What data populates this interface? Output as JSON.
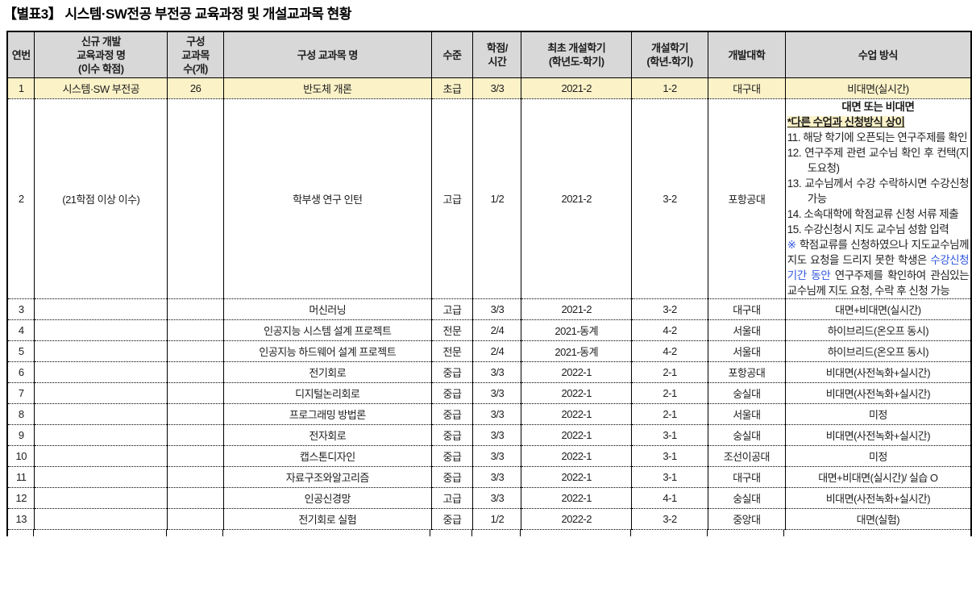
{
  "title": "【별표3】 시스템·SW전공 부전공 교육과정 및 개설교과목 현황",
  "colors": {
    "header_bg": "#d8d8d8",
    "highlight_bg": "#fcf2c8",
    "accent_blue": "#2f55e0",
    "border": "#000000"
  },
  "table": {
    "headers": [
      "연번",
      "신규 개발\n교육과정 명\n(이수 학점)",
      "구성\n교과목\n수(개)",
      "구성 교과목 명",
      "수준",
      "학점/\n시간",
      "최초 개설학기\n(학년도-학기)",
      "개설학기\n(학년-학기)",
      "개발대학",
      "수업 방식"
    ],
    "rows": [
      {
        "no": "1",
        "curriculum": "시스템·SW 부전공",
        "count": "26",
        "subject": "반도체 개론",
        "level": "초급",
        "credit": "3/3",
        "first_semester": "2021-2",
        "semester": "1-2",
        "university": "대구대",
        "method": "비대면(실시간)",
        "highlight": true
      },
      {
        "no": "2",
        "curriculum": "(21학점 이상 이수)",
        "count": "",
        "subject": "학부생 연구 인턴",
        "level": "고급",
        "credit": "1/2",
        "first_semester": "2021-2",
        "semester": "3-2",
        "university": "포항공대",
        "method_special": true,
        "curriculum_left": true
      },
      {
        "no": "3",
        "curriculum": "",
        "count": "",
        "subject": "머신러닝",
        "level": "고급",
        "credit": "3/3",
        "first_semester": "2021-2",
        "semester": "3-2",
        "university": "대구대",
        "method": "대면+비대면(실시간)"
      },
      {
        "no": "4",
        "curriculum": "",
        "count": "",
        "subject": "인공지능 시스템 설계 프로젝트",
        "level": "전문",
        "credit": "2/4",
        "first_semester": "2021-동계",
        "semester": "4-2",
        "university": "서울대",
        "method": "하이브리드(온오프 동시)"
      },
      {
        "no": "5",
        "curriculum": "",
        "count": "",
        "subject": "인공지능 하드웨어 설계 프로젝트",
        "level": "전문",
        "credit": "2/4",
        "first_semester": "2021-동계",
        "semester": "4-2",
        "university": "서울대",
        "method": "하이브리드(온오프 동시)"
      },
      {
        "no": "6",
        "curriculum": "",
        "count": "",
        "subject": "전기회로",
        "level": "중급",
        "credit": "3/3",
        "first_semester": "2022-1",
        "semester": "2-1",
        "university": "포항공대",
        "method": "비대면(사전녹화+실시간)"
      },
      {
        "no": "7",
        "curriculum": "",
        "count": "",
        "subject": "디지털논리회로",
        "level": "중급",
        "credit": "3/3",
        "first_semester": "2022-1",
        "semester": "2-1",
        "university": "숭실대",
        "method": "비대면(사전녹화+실시간)"
      },
      {
        "no": "8",
        "curriculum": "",
        "count": "",
        "subject": "프로그래밍 방법론",
        "level": "중급",
        "credit": "3/3",
        "first_semester": "2022-1",
        "semester": "2-1",
        "university": "서울대",
        "method": "미정"
      },
      {
        "no": "9",
        "curriculum": "",
        "count": "",
        "subject": "전자회로",
        "level": "중급",
        "credit": "3/3",
        "first_semester": "2022-1",
        "semester": "3-1",
        "university": "숭실대",
        "method": "비대면(사전녹화+실시간)"
      },
      {
        "no": "10",
        "curriculum": "",
        "count": "",
        "subject": "캡스톤디자인",
        "level": "중급",
        "credit": "3/3",
        "first_semester": "2022-1",
        "semester": "3-1",
        "university": "조선이공대",
        "method": "미정"
      },
      {
        "no": "11",
        "curriculum": "",
        "count": "",
        "subject": "자료구조와알고리즘",
        "level": "중급",
        "credit": "3/3",
        "first_semester": "2022-1",
        "semester": "3-1",
        "university": "대구대",
        "method": "대면+비대면(실시간)/ 실습 O"
      },
      {
        "no": "12",
        "curriculum": "",
        "count": "",
        "subject": "인공신경망",
        "level": "고급",
        "credit": "3/3",
        "first_semester": "2022-1",
        "semester": "4-1",
        "university": "숭실대",
        "method": "비대면(사전녹화+실시간)"
      },
      {
        "no": "13",
        "curriculum": "",
        "count": "",
        "subject": "전기회로 실험",
        "level": "중급",
        "credit": "1/2",
        "first_semester": "2022-2",
        "semester": "3-2",
        "university": "중앙대",
        "method": "대면(실험)"
      }
    ]
  },
  "special_method": {
    "line1": "대면 또는 비대면",
    "line2": "*다른 수업과 신청방식 상이",
    "items": [
      {
        "num": "11.",
        "text": "해당 학기에 오픈되는 연구주제를 확인"
      },
      {
        "num": "12.",
        "text": "연구주제 관련 교수님 확인 후 컨택(지도요청)"
      },
      {
        "num": "13.",
        "text": "교수님께서 수강 수락하시면 수강신청 가능"
      },
      {
        "num": "14.",
        "text": "소속대학에 학점교류 신청 서류 제출"
      },
      {
        "num": "15.",
        "text": "수강신청시 지도 교수님 성함 입력"
      }
    ],
    "note": {
      "marker": "※",
      "before": " 학점교류를 신청하였으나 지도교수님께 지도 요청을 드리지 못한 학생은 ",
      "blue": "수강신청 기간 동안",
      "after": " 연구주제를 확인하여 관심있는 교수님께 지도 요청, 수락 후 신청 가능"
    }
  }
}
